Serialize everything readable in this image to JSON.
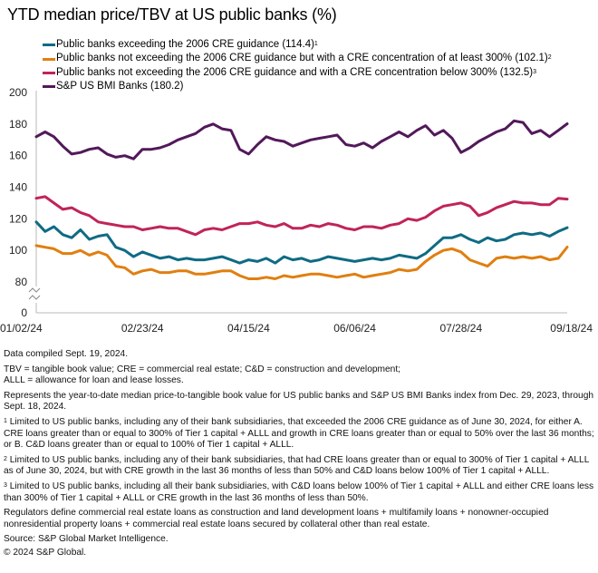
{
  "title": "YTD median price/TBV at US public banks (%)",
  "chart_data": {
    "type": "line",
    "title": "YTD median price/TBV at US public banks (%)",
    "xlabel": "",
    "ylabel": "",
    "ylim": [
      0,
      200
    ],
    "axis_break": "between 0 and 80",
    "yticks": [
      0,
      80,
      100,
      120,
      140,
      160,
      180,
      200
    ],
    "ytick_labels": [
      "0",
      "80",
      "100",
      "120",
      "140",
      "160",
      "180",
      "200"
    ],
    "xtick_labels": [
      "01/02/24",
      "02/23/24",
      "04/15/24",
      "06/06/24",
      "07/28/24",
      "09/18/24"
    ],
    "x_range": [
      "01/02/24",
      "09/18/24"
    ],
    "grid": false,
    "legend_position": "top-left",
    "series": [
      {
        "name": "Public banks exceeding the 2006 CRE guidance (114.4)",
        "footnote": "1",
        "color": "#0f6b84",
        "values": [
          118,
          112,
          115,
          110,
          108,
          113,
          107,
          109,
          110,
          102,
          100,
          96,
          99,
          97,
          95,
          96,
          94,
          95,
          94,
          94,
          95,
          96,
          94,
          92,
          94,
          93,
          95,
          92,
          96,
          94,
          95,
          93,
          94,
          96,
          95,
          94,
          93,
          94,
          95,
          94,
          95,
          97,
          96,
          95,
          98,
          103,
          108,
          108,
          110,
          107,
          105,
          108,
          106,
          107,
          110,
          111,
          110,
          111,
          109,
          112,
          114.4
        ]
      },
      {
        "name": "Public banks not exceeding the 2006 CRE guidance but with a CRE concentration of at least 300% (102.1)",
        "footnote": "2",
        "color": "#e07f10",
        "values": [
          103,
          102,
          101,
          98,
          98,
          100,
          97,
          99,
          97,
          90,
          89,
          85,
          87,
          88,
          86,
          86,
          87,
          87,
          85,
          85,
          86,
          87,
          87,
          84,
          82,
          82,
          83,
          82,
          84,
          83,
          84,
          85,
          85,
          84,
          83,
          84,
          85,
          83,
          84,
          85,
          86,
          88,
          87,
          88,
          93,
          97,
          100,
          101,
          99,
          94,
          92,
          90,
          95,
          96,
          95,
          96,
          95,
          96,
          94,
          95,
          102.1
        ]
      },
      {
        "name": "Public banks not exceeding the 2006 CRE guidance and with a CRE concentration below 300% (132.5)",
        "footnote": "3",
        "color": "#c0245a",
        "values": [
          133,
          134,
          130,
          126,
          127,
          124,
          122,
          118,
          117,
          116,
          115,
          115,
          113,
          114,
          115,
          114,
          114,
          112,
          110,
          113,
          114,
          113,
          115,
          117,
          117,
          118,
          116,
          115,
          117,
          114,
          114,
          116,
          115,
          117,
          116,
          114,
          113,
          115,
          115,
          114,
          116,
          117,
          120,
          119,
          121,
          125,
          128,
          129,
          130,
          128,
          122,
          124,
          127,
          129,
          131,
          130,
          130,
          129,
          129,
          133,
          132.5
        ]
      },
      {
        "name": "S&P US BMI Banks (180.2)",
        "footnote": "",
        "color": "#52195a",
        "values": [
          172,
          175,
          172,
          166,
          161,
          162,
          164,
          165,
          161,
          159,
          160,
          158,
          164,
          164,
          165,
          167,
          170,
          172,
          174,
          178,
          180,
          177,
          176,
          164,
          161,
          167,
          172,
          170,
          169,
          166,
          168,
          170,
          171,
          172,
          173,
          167,
          166,
          168,
          165,
          169,
          172,
          175,
          172,
          176,
          179,
          173,
          176,
          171,
          162,
          165,
          169,
          172,
          175,
          177,
          182,
          181,
          174,
          176,
          172,
          176,
          180.2
        ]
      }
    ]
  },
  "legend": [
    {
      "label": "Public banks exceeding the 2006 CRE guidance (114.4)",
      "sup": "1"
    },
    {
      "label": "Public banks not exceeding the 2006 CRE guidance but with a CRE concentration of at least 300% (102.1)",
      "sup": "2"
    },
    {
      "label": "Public banks not exceeding the 2006 CRE guidance and with a CRE concentration below 300% (132.5)",
      "sup": "3"
    },
    {
      "label": "S&P US BMI Banks (180.2)",
      "sup": ""
    }
  ],
  "notes": {
    "compiled": "Data compiled Sept. 19, 2024.",
    "abbreviations_1": "TBV = tangible book value; CRE = commercial real estate; C&D = construction and development;",
    "abbreviations_2": "ALLL = allowance for loan and lease losses.",
    "represents": "Represents the year-to-date median price-to-tangible book value for US public banks and S&P US BMI Banks index from Dec. 29, 2023, through Sept. 18, 2024.",
    "footnote_1_mark": "1",
    "footnote_1": " Limited to US public banks, including any of their bank subsidiaries, that exceeded the 2006 CRE guidance as of June 30, 2024, for either A. CRE loans greater than or equal to 300% of Tier 1 capital + ALLL and growth in CRE loans greater than or equal to 50% over the last 36 months; or B. C&D loans greater than or equal to 100% of Tier 1 capital + ALLL.",
    "footnote_2_mark": "2",
    "footnote_2": " Limited to US public banks, including any of their bank subsidiaries, that had CRE loans greater than or equal to 300% of Tier 1 capital + ALLL as of June 30, 2024, but with CRE growth in the last 36 months of less than 50% and C&D loans below 100% of Tier 1 capital + ALLL.",
    "footnote_3_mark": "3",
    "footnote_3": " Limited to US public banks, including all their bank subsidiaries, with C&D loans below 100% of Tier 1 capital + ALLL and either CRE loans less than 300% of Tier 1 capital + ALLL or CRE growth in the last 36 months of less than 50%.",
    "regulators": "Regulators define commercial real estate loans as construction and land development loans + multifamily loans + nonowner-occupied nonresidential property loans + commercial real estate loans secured by collateral other than real estate.",
    "source": "Source: S&P Global Market Intelligence.",
    "copyright": "© 2024 S&P Global."
  }
}
